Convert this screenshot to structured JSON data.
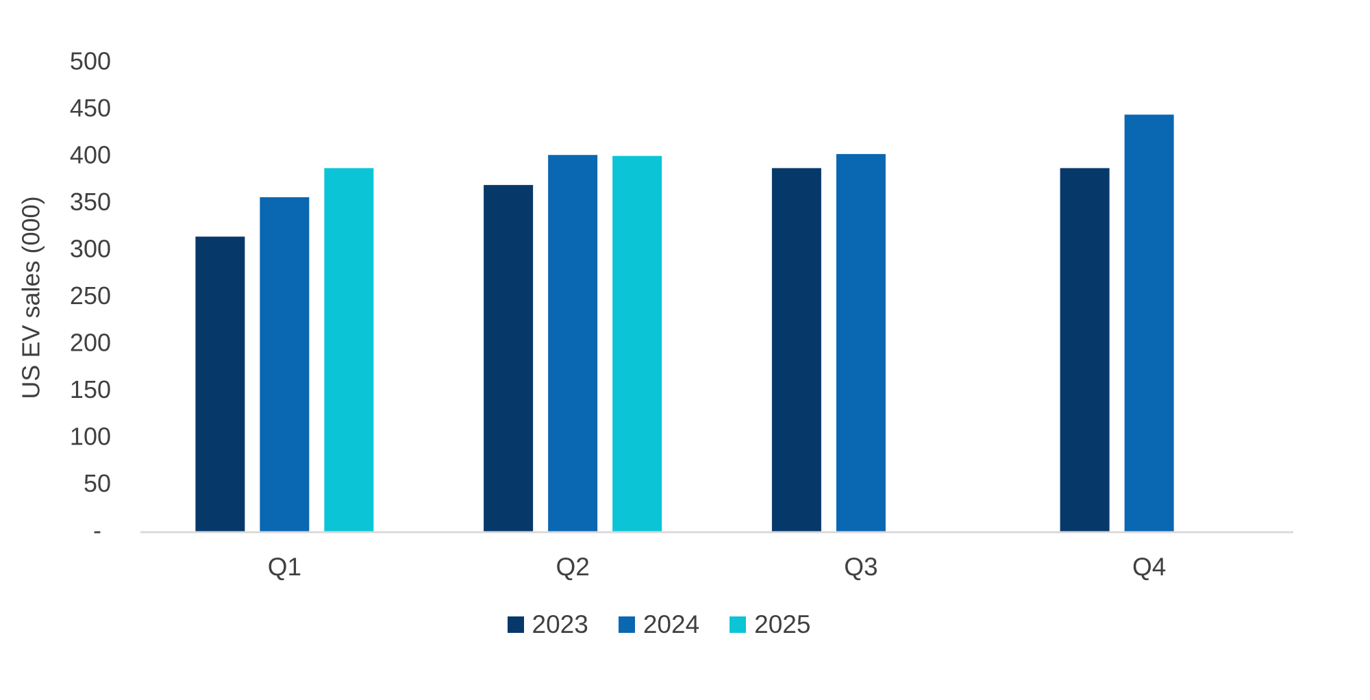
{
  "chart_data": {
    "type": "bar",
    "title": "",
    "ylabel": "US EV sales (000)",
    "categories": [
      "Q1",
      "Q2",
      "Q3",
      "Q4"
    ],
    "series": [
      {
        "name": "2023",
        "color": "#07386A",
        "values": [
          315,
          370,
          388,
          388
        ]
      },
      {
        "name": "2024",
        "color": "#0A67B2",
        "values": [
          357,
          402,
          403,
          445
        ]
      },
      {
        "name": "2025",
        "color": "#0BC5D7",
        "values": [
          388,
          401,
          null,
          null
        ]
      }
    ],
    "ylim": [
      0,
      500
    ],
    "ytick_step": 50,
    "ytick_labels": [
      "-",
      "50",
      "100",
      "150",
      "200",
      "250",
      "300",
      "350",
      "400",
      "450",
      "500"
    ],
    "grid": false,
    "legend_position": "bottom",
    "legend_labels": [
      "2023",
      "2024",
      "2025"
    ]
  },
  "colors": {
    "text": "#404040",
    "axis_line": "#D9D9D9",
    "background": "#FFFFFF"
  }
}
